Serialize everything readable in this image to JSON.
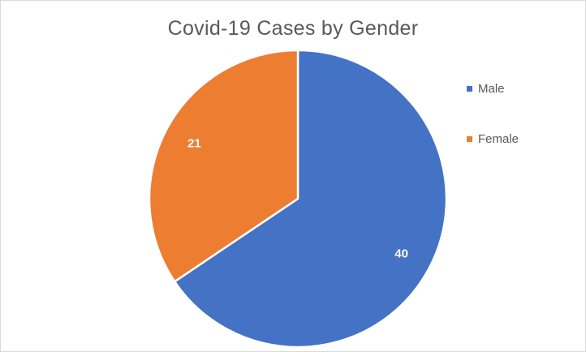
{
  "colors": {
    "male": "#4472c4",
    "female": "#ed7d31",
    "slice_border": "#ffffff"
  },
  "chart_data": {
    "type": "pie",
    "title": "Covid-19 Cases by Gender",
    "categories": [
      "Male",
      "Female"
    ],
    "values": [
      40,
      21
    ],
    "data_labels": [
      "40",
      "21"
    ],
    "legend": {
      "placement": "right",
      "entries": [
        "Male",
        "Female"
      ]
    },
    "start_angle_deg": 0,
    "direction": "clockwise"
  }
}
